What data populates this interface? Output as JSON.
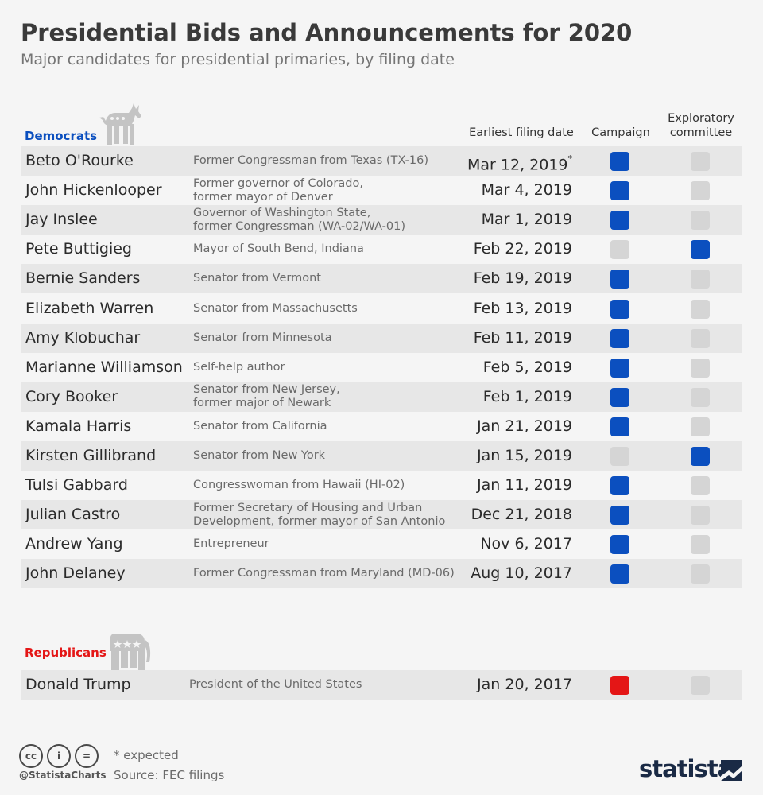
{
  "chart_data": {
    "type": "table",
    "title": "Presidential Bids and Announcements for 2020",
    "subtitle": "Major candidates for presidential primaries, by filing date",
    "columns": {
      "date": "Earliest filing date",
      "campaign": "Campaign",
      "exploratory": "Exploratory committee"
    },
    "groups": [
      {
        "party": "Democrats",
        "color": "#0b4fbf",
        "rows": [
          {
            "name": "Beto O'Rourke",
            "role": "Former Congressman from Texas (TX-16)",
            "date": "Mar 12, 2019",
            "mark": "*",
            "type": "campaign"
          },
          {
            "name": "John Hickenlooper",
            "role": "Former governor of Colorado,\nformer mayor of Denver",
            "date": "Mar 4, 2019",
            "mark": "",
            "type": "campaign"
          },
          {
            "name": "Jay Inslee",
            "role": "Governor of Washington State,\nformer Congressman (WA-02/WA-01)",
            "date": "Mar 1, 2019",
            "mark": "",
            "type": "campaign"
          },
          {
            "name": "Pete Buttigieg",
            "role": "Mayor of South Bend, Indiana",
            "date": "Feb 22, 2019",
            "mark": "",
            "type": "exploratory"
          },
          {
            "name": "Bernie Sanders",
            "role": "Senator from Vermont",
            "date": "Feb 19, 2019",
            "mark": "",
            "type": "campaign"
          },
          {
            "name": "Elizabeth Warren",
            "role": "Senator from Massachusetts",
            "date": "Feb 13, 2019",
            "mark": "",
            "type": "campaign"
          },
          {
            "name": "Amy Klobuchar",
            "role": "Senator from Minnesota",
            "date": "Feb 11, 2019",
            "mark": "",
            "type": "campaign"
          },
          {
            "name": "Marianne Williamson",
            "role": "Self-help author",
            "date": "Feb 5, 2019",
            "mark": "",
            "type": "campaign"
          },
          {
            "name": "Cory Booker",
            "role": "Senator from New Jersey,\nformer major of Newark",
            "date": "Feb 1, 2019",
            "mark": "",
            "type": "campaign"
          },
          {
            "name": "Kamala Harris",
            "role": "Senator from California",
            "date": "Jan 21, 2019",
            "mark": "",
            "type": "campaign"
          },
          {
            "name": "Kirsten Gillibrand",
            "role": "Senator from New York",
            "date": "Jan 15, 2019",
            "mark": "",
            "type": "exploratory"
          },
          {
            "name": "Tulsi Gabbard",
            "role": "Congresswoman from Hawaii (HI-02)",
            "date": "Jan 11, 2019",
            "mark": "",
            "type": "campaign"
          },
          {
            "name": "Julian Castro",
            "role": "Former Secretary of Housing and Urban\nDevelopment, former mayor of San Antonio",
            "date": "Dec 21, 2018",
            "mark": "",
            "type": "campaign"
          },
          {
            "name": "Andrew Yang",
            "role": "Entrepreneur",
            "date": "Nov 6, 2017",
            "mark": "",
            "type": "campaign"
          },
          {
            "name": "John Delaney",
            "role": "Former Congressman from Maryland (MD-06)",
            "date": "Aug 10, 2017",
            "mark": "",
            "type": "campaign"
          }
        ]
      },
      {
        "party": "Republicans",
        "color": "#e41616",
        "rows": [
          {
            "name": "Donald Trump",
            "role": "President of the United States",
            "date": "Jan 20, 2017",
            "mark": "",
            "type": "campaign"
          }
        ]
      }
    ],
    "note": "* expected",
    "source": "Source: FEC filings"
  },
  "footer": {
    "handle": "@StatistaCharts",
    "brand": "statista",
    "license_icons": [
      "cc",
      "i",
      "="
    ]
  },
  "colors": {
    "democrat": "#0b4fbf",
    "republican": "#e41616",
    "inactive": "#d5d5d5",
    "row_shade": "#e7e7e7"
  }
}
